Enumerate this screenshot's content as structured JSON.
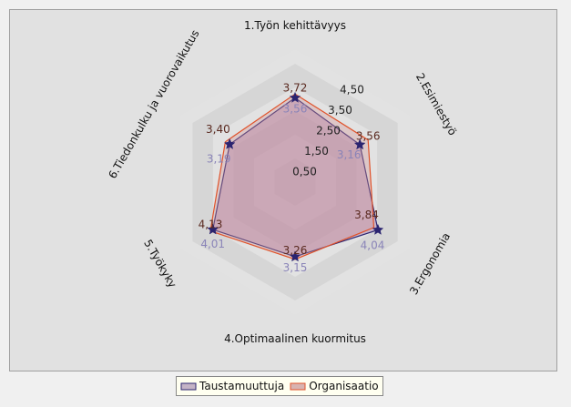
{
  "chart_data": {
    "type": "radar",
    "axes": [
      "1.Työn kehittävyys",
      "2.Esimiestyö",
      "3.Ergonomia",
      "4.Optimaalinen kuormitus",
      "5.Työkyky",
      "6.Tiedonkulku ja vuorovaikutus"
    ],
    "radial_ticks": [
      "0,50",
      "1,50",
      "2,50",
      "3,50",
      "4,50"
    ],
    "rlim": [
      0,
      5
    ],
    "series": [
      {
        "name": "Taustamuuttuja",
        "values": [
          3.56,
          3.16,
          4.04,
          3.15,
          4.01,
          3.19
        ],
        "labels": [
          "3,56",
          "3,16",
          "4,04",
          "3,15",
          "4,01",
          "3,19"
        ],
        "color": "#2b2470",
        "label_color": "#8a84b8"
      },
      {
        "name": "Organisaatio",
        "values": [
          3.72,
          3.56,
          3.84,
          3.26,
          4.13,
          3.4
        ],
        "labels": [
          "3,72",
          "3,56",
          "3,84",
          "3,26",
          "4,13",
          "3,40"
        ],
        "color": "#e0522a",
        "label_color": "#5a2a20"
      }
    ],
    "legend_position": "bottom"
  }
}
